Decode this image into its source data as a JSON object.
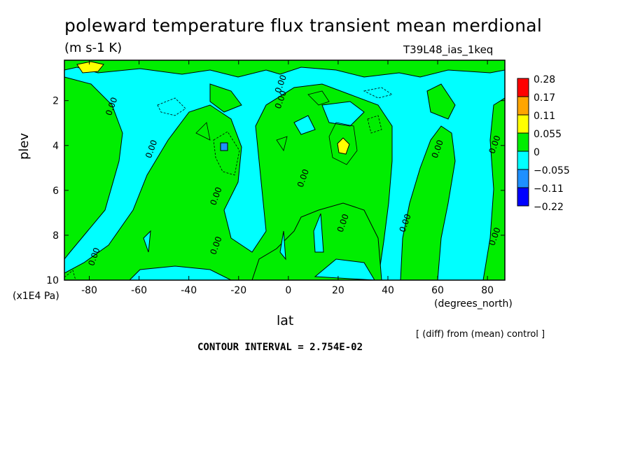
{
  "header": {
    "title": "poleward temperature flux transient mean merdional",
    "units": "(m s-1 K)",
    "dataset": "T39L48_ias_1keq"
  },
  "footer": {
    "diff_note": "[ (diff) from (mean) control ]",
    "contour_interval": "CONTOUR INTERVAL = 2.754E-02"
  },
  "colors": {
    "cyan": "#00ffff",
    "green": "#00ee00",
    "yellow": "#ffff00",
    "orange": "#ffa500",
    "red": "#ff0000",
    "blue_mid": "#1e90ff",
    "blue_dark": "#0000ff"
  },
  "chart_data": {
    "type": "heatmap",
    "title": "poleward temperature flux transient mean merdional",
    "xlabel": "lat",
    "ylabel": "plev",
    "x_units": "(degrees_north)",
    "y_units": "(x1E4 Pa)",
    "xlim": [
      -90,
      87
    ],
    "ylim": [
      0.2,
      10
    ],
    "y_inverted": true,
    "x_ticks": [
      "-80",
      "-60",
      "-40",
      "-20",
      "0",
      "20",
      "40",
      "60",
      "80"
    ],
    "x_tick_values": [
      -80,
      -60,
      -40,
      -20,
      0,
      20,
      40,
      60,
      80
    ],
    "y_ticks": [
      "2",
      "4",
      "6",
      "8",
      "10"
    ],
    "y_tick_values": [
      2,
      4,
      6,
      8,
      10
    ],
    "colorbar": {
      "labels": [
        "0.28",
        "0.17",
        "0.11",
        "0.055",
        "0",
        "−0.055",
        "−0.11",
        "−0.22"
      ],
      "colors": [
        "#ff0000",
        "#ffa500",
        "#ffff00",
        "#00ee00",
        "#00ffff",
        "#1e90ff",
        "#0000ff"
      ]
    },
    "contour_labels": [
      {
        "text": "0.00",
        "x": -70,
        "y": 2.3
      },
      {
        "text": "0.00",
        "x": -54,
        "y": 4.2
      },
      {
        "text": "0.00",
        "x": -77,
        "y": 9.0
      },
      {
        "text": "0.00",
        "x": -28,
        "y": 6.3
      },
      {
        "text": "0.00",
        "x": -28,
        "y": 8.5
      },
      {
        "text": "0.00",
        "x": -2,
        "y": 1.3
      },
      {
        "text": "0.00",
        "x": -2,
        "y": 2.0
      },
      {
        "text": "0.00",
        "x": 7,
        "y": 5.5
      },
      {
        "text": "0.00",
        "x": 23,
        "y": 7.5
      },
      {
        "text": "0.00",
        "x": 48,
        "y": 7.5
      },
      {
        "text": "0.00",
        "x": 61,
        "y": 4.2
      },
      {
        "text": "0.00",
        "x": 84,
        "y": 4.0
      },
      {
        "text": "0.00",
        "x": 84,
        "y": 8.1
      }
    ],
    "note": "Field is mostly 0 to 0.055 (green) with regions of -0.055 to 0 (cyan); small yellow maxima near (-80, 0.3) and (23, 4); small blue minimum near (-24, 4)."
  }
}
